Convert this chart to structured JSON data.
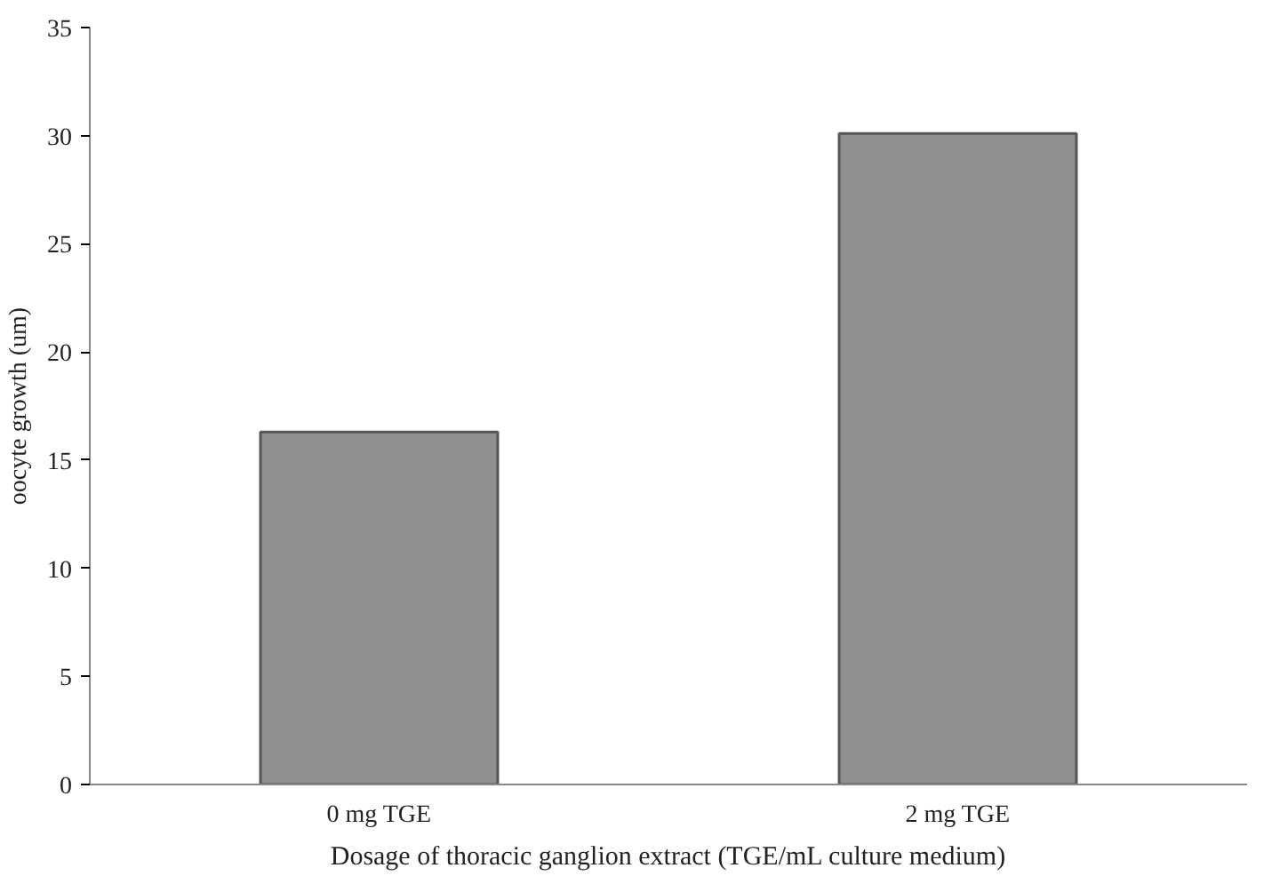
{
  "chart_data": {
    "type": "bar",
    "xlabel": "Dosage of thoracic ganglion extract (TGE/mL culture medium)",
    "ylabel": "oocyte growth (um)",
    "categories": [
      "0 mg TGE",
      "2 mg TGE"
    ],
    "values": [
      16.3,
      30.1
    ],
    "color": "#8f8f8f",
    "ylim": [
      0,
      35
    ],
    "yticks": [
      0,
      5,
      10,
      15,
      20,
      25,
      30,
      35
    ],
    "grid": false
  }
}
